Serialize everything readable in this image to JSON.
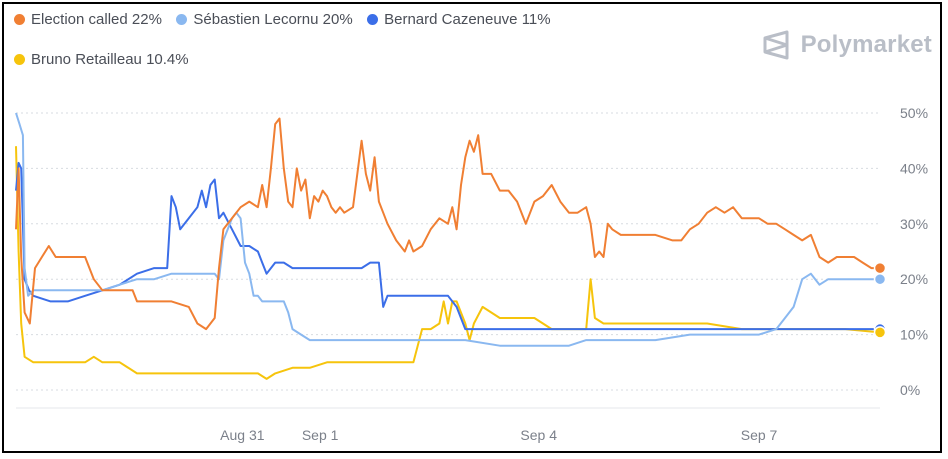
{
  "legend": [
    {
      "label": "Election called 22%",
      "color": "#f07f33"
    },
    {
      "label": "Sébastien Lecornu 20%",
      "color": "#8ab8f0"
    },
    {
      "label": "Bernard Cazeneuve 11%",
      "color": "#3b6ee8"
    },
    {
      "label": "Bruno Retailleau 10.4%",
      "color": "#f6c40c"
    }
  ],
  "brand": {
    "name": "Polymarket",
    "icon": "polymarket-logo-icon"
  },
  "chart_data": {
    "type": "line",
    "x_ticks": [
      {
        "label": "Aug 31",
        "t": 0.262
      },
      {
        "label": "Sep 1",
        "t": 0.352
      },
      {
        "label": "Sep 4",
        "t": 0.605
      },
      {
        "label": "Sep 7",
        "t": 0.86
      }
    ],
    "y_ticks": [
      "0%",
      "10%",
      "20%",
      "30%",
      "40%",
      "50%"
    ],
    "ylim": [
      0,
      50
    ],
    "grid": "horizontal dashed",
    "series": [
      {
        "name": "Election called",
        "color": "#f07f33",
        "end_value": 22,
        "points": [
          [
            0,
            29
          ],
          [
            0.003,
            40
          ],
          [
            0.006,
            24
          ],
          [
            0.01,
            14
          ],
          [
            0.016,
            12
          ],
          [
            0.022,
            22
          ],
          [
            0.03,
            24
          ],
          [
            0.038,
            26
          ],
          [
            0.046,
            24
          ],
          [
            0.06,
            24
          ],
          [
            0.08,
            24
          ],
          [
            0.09,
            20
          ],
          [
            0.1,
            18
          ],
          [
            0.12,
            18
          ],
          [
            0.135,
            18
          ],
          [
            0.14,
            16
          ],
          [
            0.16,
            16
          ],
          [
            0.18,
            16
          ],
          [
            0.2,
            15
          ],
          [
            0.21,
            12
          ],
          [
            0.22,
            11
          ],
          [
            0.23,
            13
          ],
          [
            0.235,
            22
          ],
          [
            0.24,
            29
          ],
          [
            0.25,
            31
          ],
          [
            0.26,
            33
          ],
          [
            0.27,
            34
          ],
          [
            0.28,
            33
          ],
          [
            0.285,
            37
          ],
          [
            0.29,
            33
          ],
          [
            0.295,
            40
          ],
          [
            0.3,
            48
          ],
          [
            0.305,
            49
          ],
          [
            0.31,
            40
          ],
          [
            0.315,
            34
          ],
          [
            0.32,
            33
          ],
          [
            0.325,
            40
          ],
          [
            0.33,
            36
          ],
          [
            0.335,
            38
          ],
          [
            0.34,
            31
          ],
          [
            0.345,
            35
          ],
          [
            0.35,
            34
          ],
          [
            0.355,
            36
          ],
          [
            0.36,
            35
          ],
          [
            0.365,
            33
          ],
          [
            0.37,
            32
          ],
          [
            0.375,
            33
          ],
          [
            0.38,
            32
          ],
          [
            0.39,
            33
          ],
          [
            0.4,
            45
          ],
          [
            0.405,
            39
          ],
          [
            0.41,
            36
          ],
          [
            0.415,
            42
          ],
          [
            0.42,
            34
          ],
          [
            0.425,
            32
          ],
          [
            0.43,
            30
          ],
          [
            0.44,
            27
          ],
          [
            0.45,
            25
          ],
          [
            0.455,
            27
          ],
          [
            0.46,
            25
          ],
          [
            0.47,
            26
          ],
          [
            0.48,
            29
          ],
          [
            0.49,
            31
          ],
          [
            0.5,
            30
          ],
          [
            0.505,
            33
          ],
          [
            0.51,
            29
          ],
          [
            0.515,
            37
          ],
          [
            0.52,
            42
          ],
          [
            0.525,
            45
          ],
          [
            0.53,
            43
          ],
          [
            0.535,
            46
          ],
          [
            0.54,
            39
          ],
          [
            0.55,
            39
          ],
          [
            0.56,
            36
          ],
          [
            0.57,
            36
          ],
          [
            0.58,
            34
          ],
          [
            0.59,
            30
          ],
          [
            0.6,
            34
          ],
          [
            0.61,
            35
          ],
          [
            0.62,
            37
          ],
          [
            0.63,
            34
          ],
          [
            0.64,
            32
          ],
          [
            0.65,
            32
          ],
          [
            0.66,
            33
          ],
          [
            0.665,
            30
          ],
          [
            0.67,
            24
          ],
          [
            0.675,
            25
          ],
          [
            0.68,
            24
          ],
          [
            0.685,
            30
          ],
          [
            0.69,
            29
          ],
          [
            0.7,
            28
          ],
          [
            0.72,
            28
          ],
          [
            0.74,
            28
          ],
          [
            0.76,
            27
          ],
          [
            0.77,
            27
          ],
          [
            0.78,
            29
          ],
          [
            0.79,
            30
          ],
          [
            0.8,
            32
          ],
          [
            0.81,
            33
          ],
          [
            0.82,
            32
          ],
          [
            0.83,
            33
          ],
          [
            0.84,
            31
          ],
          [
            0.85,
            31
          ],
          [
            0.86,
            31
          ],
          [
            0.87,
            30
          ],
          [
            0.88,
            30
          ],
          [
            0.89,
            29
          ],
          [
            0.9,
            28
          ],
          [
            0.91,
            27
          ],
          [
            0.92,
            28
          ],
          [
            0.93,
            24
          ],
          [
            0.94,
            23
          ],
          [
            0.95,
            24
          ],
          [
            0.96,
            24
          ],
          [
            0.97,
            24
          ],
          [
            0.98,
            23
          ],
          [
            0.99,
            22
          ],
          [
            1,
            22
          ]
        ]
      },
      {
        "name": "Sébastien Lecornu",
        "color": "#8ab8f0",
        "end_value": 20,
        "points": [
          [
            0,
            50
          ],
          [
            0.004,
            48
          ],
          [
            0.008,
            46
          ],
          [
            0.01,
            22
          ],
          [
            0.014,
            17
          ],
          [
            0.02,
            18
          ],
          [
            0.04,
            18
          ],
          [
            0.06,
            18
          ],
          [
            0.08,
            18
          ],
          [
            0.1,
            18
          ],
          [
            0.12,
            19
          ],
          [
            0.14,
            20
          ],
          [
            0.16,
            20
          ],
          [
            0.18,
            21
          ],
          [
            0.2,
            21
          ],
          [
            0.22,
            21
          ],
          [
            0.23,
            21
          ],
          [
            0.235,
            20
          ],
          [
            0.24,
            27
          ],
          [
            0.25,
            31
          ],
          [
            0.255,
            32
          ],
          [
            0.26,
            31
          ],
          [
            0.265,
            23
          ],
          [
            0.27,
            21
          ],
          [
            0.275,
            17
          ],
          [
            0.28,
            17
          ],
          [
            0.285,
            16
          ],
          [
            0.3,
            16
          ],
          [
            0.31,
            16
          ],
          [
            0.315,
            14
          ],
          [
            0.32,
            11
          ],
          [
            0.33,
            10
          ],
          [
            0.34,
            9
          ],
          [
            0.36,
            9
          ],
          [
            0.4,
            9
          ],
          [
            0.44,
            9
          ],
          [
            0.48,
            9
          ],
          [
            0.52,
            9
          ],
          [
            0.56,
            8
          ],
          [
            0.6,
            8
          ],
          [
            0.64,
            8
          ],
          [
            0.66,
            9
          ],
          [
            0.7,
            9
          ],
          [
            0.74,
            9
          ],
          [
            0.78,
            10
          ],
          [
            0.82,
            10
          ],
          [
            0.86,
            10
          ],
          [
            0.88,
            11
          ],
          [
            0.89,
            13
          ],
          [
            0.9,
            15
          ],
          [
            0.91,
            20
          ],
          [
            0.92,
            21
          ],
          [
            0.93,
            19
          ],
          [
            0.94,
            20
          ],
          [
            0.96,
            20
          ],
          [
            0.98,
            20
          ],
          [
            1,
            20
          ]
        ]
      },
      {
        "name": "Bernard Cazeneuve",
        "color": "#3b6ee8",
        "end_value": 11,
        "points": [
          [
            0,
            36
          ],
          [
            0.003,
            41
          ],
          [
            0.006,
            40
          ],
          [
            0.01,
            20
          ],
          [
            0.015,
            18
          ],
          [
            0.02,
            17
          ],
          [
            0.04,
            16
          ],
          [
            0.06,
            16
          ],
          [
            0.08,
            17
          ],
          [
            0.1,
            18
          ],
          [
            0.12,
            19
          ],
          [
            0.14,
            21
          ],
          [
            0.16,
            22
          ],
          [
            0.175,
            22
          ],
          [
            0.18,
            35
          ],
          [
            0.185,
            33
          ],
          [
            0.19,
            29
          ],
          [
            0.2,
            31
          ],
          [
            0.21,
            33
          ],
          [
            0.215,
            36
          ],
          [
            0.22,
            33
          ],
          [
            0.225,
            37
          ],
          [
            0.23,
            38
          ],
          [
            0.235,
            31
          ],
          [
            0.24,
            32
          ],
          [
            0.25,
            29
          ],
          [
            0.26,
            26
          ],
          [
            0.27,
            26
          ],
          [
            0.28,
            25
          ],
          [
            0.285,
            23
          ],
          [
            0.29,
            21
          ],
          [
            0.3,
            23
          ],
          [
            0.31,
            23
          ],
          [
            0.32,
            22
          ],
          [
            0.34,
            22
          ],
          [
            0.36,
            22
          ],
          [
            0.38,
            22
          ],
          [
            0.4,
            22
          ],
          [
            0.41,
            23
          ],
          [
            0.42,
            23
          ],
          [
            0.425,
            15
          ],
          [
            0.43,
            17
          ],
          [
            0.44,
            17
          ],
          [
            0.46,
            17
          ],
          [
            0.48,
            17
          ],
          [
            0.5,
            17
          ],
          [
            0.51,
            15
          ],
          [
            0.52,
            11
          ],
          [
            0.54,
            11
          ],
          [
            0.56,
            11
          ],
          [
            0.6,
            11
          ],
          [
            0.64,
            11
          ],
          [
            0.68,
            11
          ],
          [
            0.72,
            11
          ],
          [
            0.76,
            11
          ],
          [
            0.8,
            11
          ],
          [
            0.84,
            11
          ],
          [
            0.88,
            11
          ],
          [
            0.92,
            11
          ],
          [
            0.96,
            11
          ],
          [
            1,
            11
          ]
        ]
      },
      {
        "name": "Bruno Retailleau",
        "color": "#f6c40c",
        "end_value": 10.4,
        "points": [
          [
            0,
            44
          ],
          [
            0.003,
            25
          ],
          [
            0.006,
            12
          ],
          [
            0.01,
            6
          ],
          [
            0.02,
            5
          ],
          [
            0.03,
            5
          ],
          [
            0.04,
            5
          ],
          [
            0.06,
            5
          ],
          [
            0.08,
            5
          ],
          [
            0.09,
            6
          ],
          [
            0.1,
            5
          ],
          [
            0.12,
            5
          ],
          [
            0.14,
            3
          ],
          [
            0.16,
            3
          ],
          [
            0.18,
            3
          ],
          [
            0.2,
            3
          ],
          [
            0.22,
            3
          ],
          [
            0.24,
            3
          ],
          [
            0.26,
            3
          ],
          [
            0.28,
            3
          ],
          [
            0.29,
            2
          ],
          [
            0.3,
            3
          ],
          [
            0.32,
            4
          ],
          [
            0.34,
            4
          ],
          [
            0.36,
            5
          ],
          [
            0.38,
            5
          ],
          [
            0.4,
            5
          ],
          [
            0.44,
            5
          ],
          [
            0.46,
            5
          ],
          [
            0.47,
            11
          ],
          [
            0.48,
            11
          ],
          [
            0.49,
            12
          ],
          [
            0.495,
            16
          ],
          [
            0.5,
            12
          ],
          [
            0.505,
            16
          ],
          [
            0.51,
            16
          ],
          [
            0.52,
            12
          ],
          [
            0.525,
            9
          ],
          [
            0.53,
            12
          ],
          [
            0.54,
            15
          ],
          [
            0.56,
            13
          ],
          [
            0.58,
            13
          ],
          [
            0.6,
            13
          ],
          [
            0.62,
            11
          ],
          [
            0.64,
            11
          ],
          [
            0.66,
            11
          ],
          [
            0.665,
            20
          ],
          [
            0.67,
            13
          ],
          [
            0.68,
            12
          ],
          [
            0.72,
            12
          ],
          [
            0.76,
            12
          ],
          [
            0.8,
            12
          ],
          [
            0.84,
            11
          ],
          [
            0.88,
            11
          ],
          [
            0.92,
            11
          ],
          [
            0.96,
            11
          ],
          [
            1,
            10.4
          ]
        ]
      }
    ]
  }
}
